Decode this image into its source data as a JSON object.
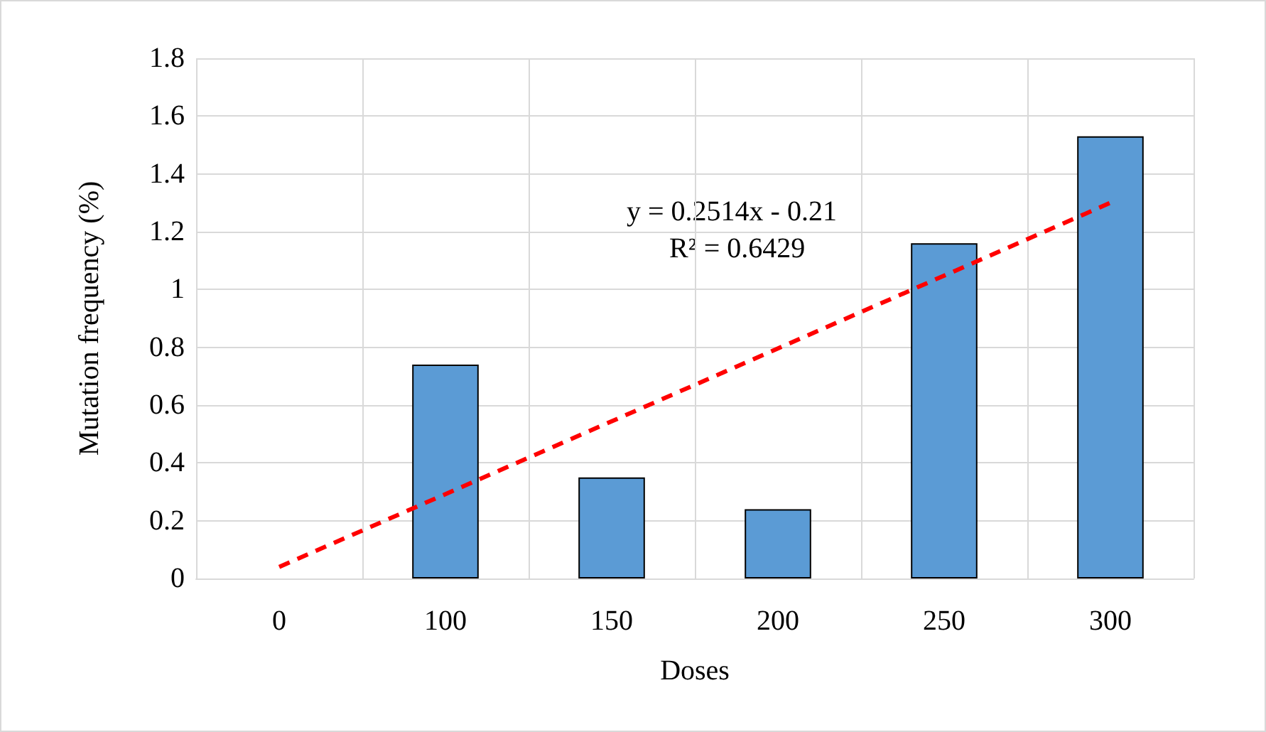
{
  "chart_data": {
    "type": "bar",
    "xlabel": "Doses",
    "ylabel": "Mutation frequency (%)",
    "categories": [
      "0",
      "100",
      "150",
      "200",
      "250",
      "300"
    ],
    "series": [
      {
        "color": "#5b9bd5",
        "values": [
          0,
          0.74,
          0.35,
          0.24,
          1.16,
          1.53
        ]
      },
      {
        "type": "line",
        "color": "#ff0000",
        "line_style": "dashed",
        "marker": "none",
        "x": [
          "0",
          "300"
        ],
        "values": [
          0.04,
          1.3
        ]
      }
    ],
    "ylim": [
      0,
      1.8
    ],
    "yticks": [
      0,
      0.2,
      0.4,
      0.6,
      0.8,
      1,
      1.2,
      1.4,
      1.6,
      1.8
    ],
    "grid": true,
    "annotations": [
      "y = 0.2514x - 0.21",
      "R² = 0.6429"
    ]
  }
}
